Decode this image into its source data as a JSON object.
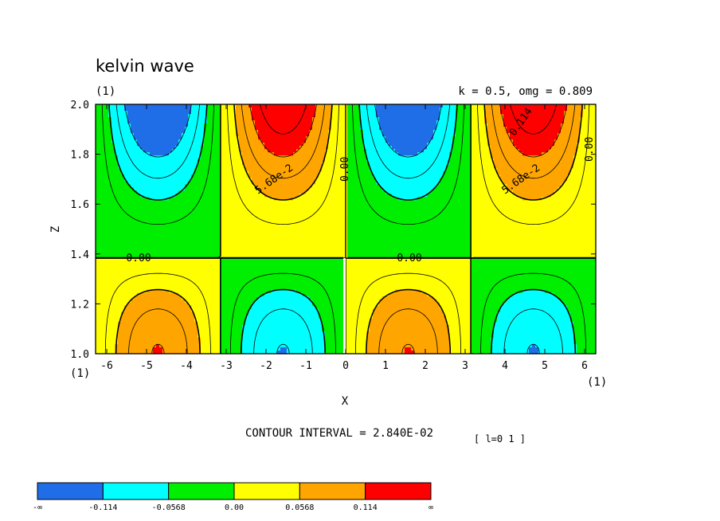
{
  "header": {
    "title": "kelvin wave",
    "panel_tag": "(1)",
    "params": "k = 0.5, omg = 0.809"
  },
  "footer": {
    "contour_interval": "CONTOUR INTERVAL = 2.840E-02",
    "index_note": "[ l=0 1 ]"
  },
  "colors": {
    "blue": "#1f6ee8",
    "cyan": "#00ffff",
    "green": "#00ee00",
    "yellow": "#ffff00",
    "orange": "#ffa500",
    "red": "#ff0000"
  },
  "chart_data": {
    "type": "heatmap",
    "title": "kelvin wave",
    "subtitle": "k = 0.5, omg = 0.809",
    "xlabel": "X",
    "ylabel": "Z",
    "xlim": [
      -6.28,
      6.28
    ],
    "ylim": [
      1.0,
      2.0
    ],
    "x_ticks": [
      -6,
      -5,
      -4,
      -3,
      -2,
      -1,
      0,
      1,
      2,
      3,
      4,
      5,
      6
    ],
    "y_ticks": [
      1.0,
      1.2,
      1.4,
      1.6,
      1.8,
      2.0
    ],
    "x_tick_labels": [
      "-6",
      "-5",
      "-4",
      "-3",
      "-2",
      "-1",
      "0",
      "1",
      "2",
      "3",
      "4",
      "5",
      "6"
    ],
    "y_tick_labels": [
      "1.0",
      "1.2",
      "1.4",
      "1.6",
      "1.8",
      "2.0"
    ],
    "x_index_label": "(1)",
    "y_index_label": "(1)",
    "contour_interval": 0.0284,
    "contour_levels": [
      -0.1136,
      -0.0852,
      -0.0568,
      -0.0284,
      0.0,
      0.0284,
      0.0568,
      0.0852,
      0.1136,
      0.142
    ],
    "contour_labels": [
      "0.00",
      "0.00",
      "0.00",
      "0.00",
      "5.68e-2",
      "5.68e-2",
      "0.114"
    ],
    "colorbar": {
      "boundaries": [
        "-∞",
        "-0.114",
        "-0.0568",
        "0.00",
        "0.0568",
        "0.114",
        "∞"
      ],
      "colors": [
        "#1f6ee8",
        "#00ffff",
        "#00ee00",
        "#ffff00",
        "#ffa500",
        "#ff0000"
      ]
    }
  }
}
